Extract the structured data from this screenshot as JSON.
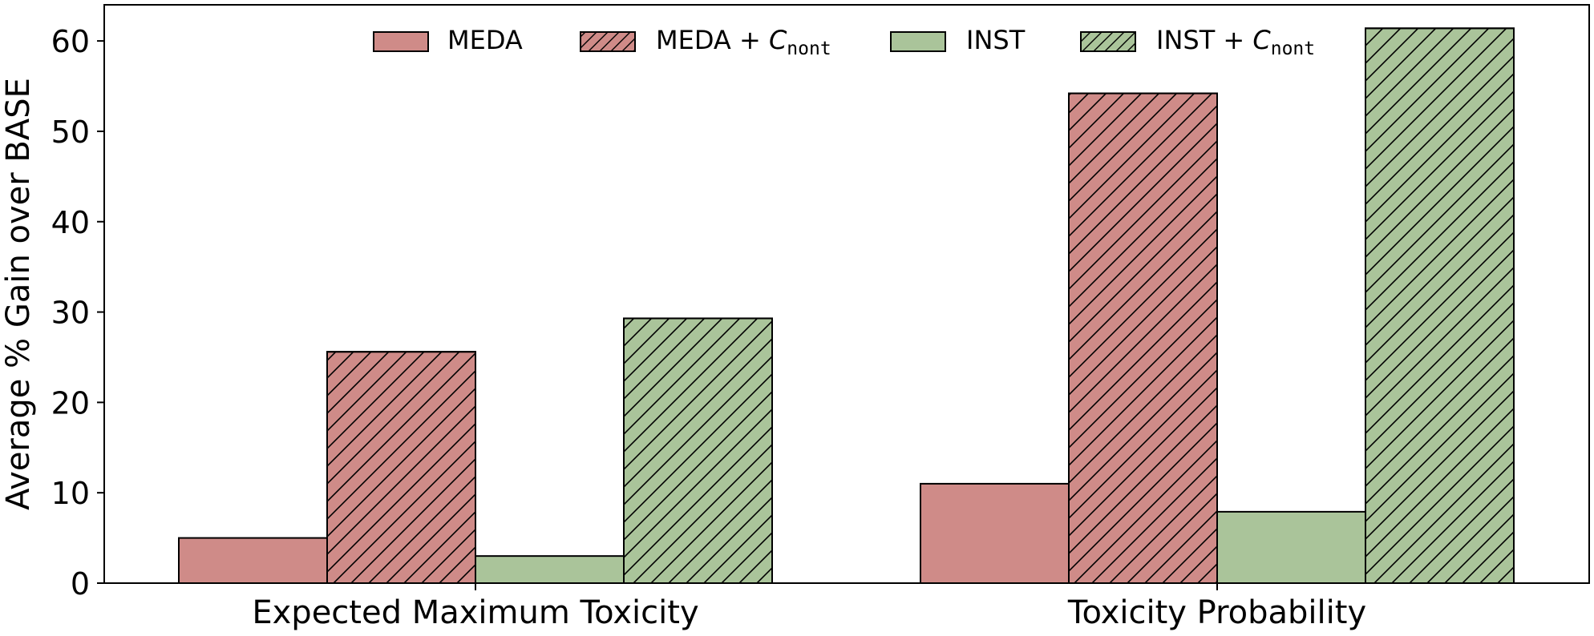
{
  "chart_data": {
    "type": "bar",
    "title": "",
    "xlabel": "",
    "ylabel": "Average % Gain over BASE",
    "ylim": [
      0,
      64
    ],
    "yticks": [
      0,
      10,
      20,
      30,
      40,
      50,
      60
    ],
    "ytick_labels": [
      "0",
      "10",
      "20",
      "30",
      "40",
      "50",
      "60"
    ],
    "grid": false,
    "legend_position": "top",
    "categories": [
      "Expected Maximum Toxicity",
      "Toxicity Probability"
    ],
    "series": [
      {
        "name": "MEDA",
        "label_main": "MEDA",
        "label_c": "",
        "label_sub": "",
        "values": [
          5.0,
          11.0
        ],
        "color": "#cf8b88",
        "hatch": false
      },
      {
        "name": "MEDA + C_nont",
        "label_main": "MEDA + ",
        "label_c": "C",
        "label_sub": "nont",
        "values": [
          25.6,
          54.2
        ],
        "color": "#cf8b88",
        "hatch": true
      },
      {
        "name": "INST",
        "label_main": "INST",
        "label_c": "",
        "label_sub": "",
        "values": [
          3.0,
          7.9
        ],
        "color": "#aac49a",
        "hatch": false
      },
      {
        "name": "INST + C_nont",
        "label_main": "INST + ",
        "label_c": "C",
        "label_sub": "nont",
        "values": [
          29.3,
          61.4
        ],
        "color": "#aac49a",
        "hatch": true
      }
    ]
  }
}
